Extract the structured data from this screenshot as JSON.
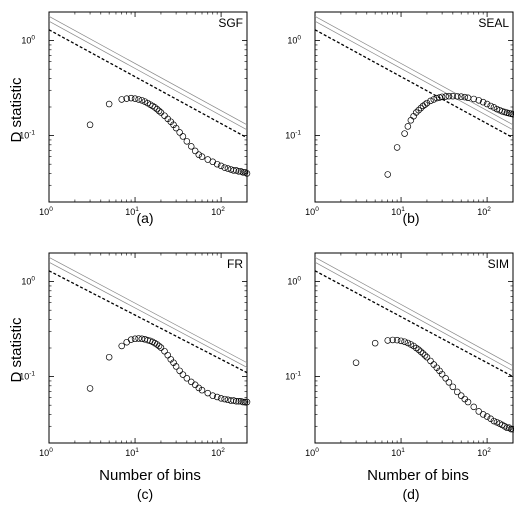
{
  "ylabel": "D statistic",
  "xlabel": "Number of bins",
  "chart_data": [
    {
      "type": "scatter",
      "panel": "(a)",
      "title": "SGF",
      "xscale": "log",
      "yscale": "log",
      "xlim": [
        1,
        200
      ],
      "ylim": [
        0.02,
        2
      ],
      "xticks": [
        {
          "v": 1,
          "base": "10",
          "exp": "0"
        },
        {
          "v": 10,
          "base": "10",
          "exp": "1"
        },
        {
          "v": 100,
          "base": "10",
          "exp": "2"
        }
      ],
      "yticks": [
        {
          "v": 0.1,
          "base": "10",
          "exp": "-1"
        },
        {
          "v": 1,
          "base": "10",
          "exp": "0"
        }
      ],
      "lines": [
        {
          "name": "upper-gray",
          "style": "solid",
          "points": [
            [
              1,
              1.8
            ],
            [
              200,
              0.13
            ]
          ]
        },
        {
          "name": "middle-gray",
          "style": "solid",
          "points": [
            [
              1,
              1.6
            ],
            [
              200,
              0.115
            ]
          ]
        },
        {
          "name": "dashed",
          "style": "dashed",
          "points": [
            [
              1,
              1.3
            ],
            [
              200,
              0.095
            ]
          ]
        }
      ],
      "x": [
        3,
        5,
        7,
        8,
        9,
        10,
        11,
        12,
        13,
        14,
        15,
        16,
        17,
        18,
        19,
        20,
        22,
        24,
        26,
        28,
        30,
        33,
        36,
        40,
        45,
        50,
        55,
        60,
        70,
        80,
        90,
        100,
        110,
        120,
        130,
        140,
        150,
        160,
        170,
        180,
        190,
        200
      ],
      "y": [
        0.13,
        0.215,
        0.24,
        0.245,
        0.248,
        0.245,
        0.24,
        0.235,
        0.228,
        0.22,
        0.212,
        0.205,
        0.198,
        0.19,
        0.182,
        0.175,
        0.162,
        0.15,
        0.14,
        0.13,
        0.12,
        0.108,
        0.098,
        0.087,
        0.077,
        0.069,
        0.063,
        0.06,
        0.056,
        0.053,
        0.05,
        0.048,
        0.046,
        0.045,
        0.044,
        0.043,
        0.043,
        0.042,
        0.042,
        0.041,
        0.041,
        0.04
      ]
    },
    {
      "type": "scatter",
      "panel": "(b)",
      "title": "SEAL",
      "xscale": "log",
      "yscale": "log",
      "xlim": [
        1,
        200
      ],
      "ylim": [
        0.02,
        2
      ],
      "xticks": [
        {
          "v": 1,
          "base": "10",
          "exp": "0"
        },
        {
          "v": 10,
          "base": "10",
          "exp": "1"
        },
        {
          "v": 100,
          "base": "10",
          "exp": "2"
        }
      ],
      "yticks": [
        {
          "v": 0.1,
          "base": "10",
          "exp": "-1"
        },
        {
          "v": 1,
          "base": "10",
          "exp": "0"
        }
      ],
      "lines": [
        {
          "name": "upper-gray",
          "style": "solid",
          "points": [
            [
              1,
              1.8
            ],
            [
              200,
              0.13
            ]
          ]
        },
        {
          "name": "middle-gray",
          "style": "solid",
          "points": [
            [
              1,
              1.6
            ],
            [
              200,
              0.115
            ]
          ]
        },
        {
          "name": "dashed",
          "style": "dashed",
          "points": [
            [
              1,
              1.3
            ],
            [
              200,
              0.095
            ]
          ]
        }
      ],
      "x": [
        7,
        9,
        11,
        12,
        13,
        14,
        15,
        16,
        17,
        18,
        19,
        20,
        22,
        24,
        26,
        28,
        30,
        33,
        36,
        40,
        45,
        50,
        55,
        60,
        70,
        80,
        90,
        100,
        110,
        120,
        130,
        140,
        150,
        160,
        170,
        180,
        190,
        200
      ],
      "y": [
        0.039,
        0.075,
        0.105,
        0.125,
        0.145,
        0.16,
        0.175,
        0.185,
        0.195,
        0.205,
        0.212,
        0.22,
        0.232,
        0.24,
        0.248,
        0.252,
        0.256,
        0.258,
        0.26,
        0.26,
        0.259,
        0.257,
        0.254,
        0.25,
        0.243,
        0.235,
        0.225,
        0.215,
        0.205,
        0.198,
        0.19,
        0.185,
        0.18,
        0.177,
        0.174,
        0.172,
        0.17,
        0.168
      ]
    },
    {
      "type": "scatter",
      "panel": "(c)",
      "title": "FR",
      "xscale": "log",
      "yscale": "log",
      "xlim": [
        1,
        200
      ],
      "ylim": [
        0.02,
        2
      ],
      "xticks": [
        {
          "v": 1,
          "base": "10",
          "exp": "0"
        },
        {
          "v": 10,
          "base": "10",
          "exp": "1"
        },
        {
          "v": 100,
          "base": "10",
          "exp": "2"
        }
      ],
      "yticks": [
        {
          "v": 0.1,
          "base": "10",
          "exp": "-1"
        },
        {
          "v": 1,
          "base": "10",
          "exp": "0"
        }
      ],
      "lines": [
        {
          "name": "upper-gray",
          "style": "solid",
          "points": [
            [
              1,
              1.8
            ],
            [
              200,
              0.14
            ]
          ]
        },
        {
          "name": "middle-gray",
          "style": "solid",
          "points": [
            [
              1,
              1.6
            ],
            [
              200,
              0.125
            ]
          ]
        },
        {
          "name": "dashed",
          "style": "dashed",
          "points": [
            [
              1,
              1.3
            ],
            [
              200,
              0.11
            ]
          ]
        }
      ],
      "x": [
        3,
        5,
        7,
        8,
        9,
        10,
        11,
        12,
        13,
        14,
        15,
        16,
        17,
        18,
        19,
        20,
        22,
        24,
        26,
        28,
        30,
        33,
        36,
        40,
        45,
        50,
        55,
        60,
        70,
        80,
        90,
        100,
        110,
        120,
        130,
        140,
        150,
        160,
        170,
        180,
        190,
        200
      ],
      "y": [
        0.075,
        0.16,
        0.21,
        0.23,
        0.245,
        0.25,
        0.252,
        0.25,
        0.247,
        0.242,
        0.238,
        0.232,
        0.225,
        0.218,
        0.21,
        0.202,
        0.185,
        0.168,
        0.152,
        0.14,
        0.128,
        0.115,
        0.105,
        0.096,
        0.088,
        0.082,
        0.076,
        0.072,
        0.067,
        0.063,
        0.061,
        0.059,
        0.058,
        0.057,
        0.056,
        0.056,
        0.055,
        0.055,
        0.055,
        0.054,
        0.054,
        0.054
      ]
    },
    {
      "type": "scatter",
      "panel": "(d)",
      "title": "SIM",
      "xscale": "log",
      "yscale": "log",
      "xlim": [
        1,
        200
      ],
      "ylim": [
        0.02,
        2
      ],
      "xticks": [
        {
          "v": 1,
          "base": "10",
          "exp": "0"
        },
        {
          "v": 10,
          "base": "10",
          "exp": "1"
        },
        {
          "v": 100,
          "base": "10",
          "exp": "2"
        }
      ],
      "yticks": [
        {
          "v": 0.1,
          "base": "10",
          "exp": "-1"
        },
        {
          "v": 1,
          "base": "10",
          "exp": "0"
        }
      ],
      "lines": [
        {
          "name": "upper-gray",
          "style": "solid",
          "points": [
            [
              1,
              1.8
            ],
            [
              200,
              0.13
            ]
          ]
        },
        {
          "name": "middle-gray",
          "style": "solid",
          "points": [
            [
              1,
              1.6
            ],
            [
              200,
              0.115
            ]
          ]
        },
        {
          "name": "dashed",
          "style": "dashed",
          "points": [
            [
              1,
              1.3
            ],
            [
              200,
              0.1
            ]
          ]
        }
      ],
      "x": [
        3,
        5,
        7,
        8,
        9,
        10,
        11,
        12,
        13,
        14,
        15,
        16,
        17,
        18,
        19,
        20,
        22,
        24,
        26,
        28,
        30,
        33,
        36,
        40,
        45,
        50,
        55,
        60,
        70,
        80,
        90,
        100,
        110,
        120,
        130,
        140,
        150,
        160,
        170,
        180,
        190,
        200
      ],
      "y": [
        0.14,
        0.225,
        0.24,
        0.243,
        0.242,
        0.238,
        0.233,
        0.226,
        0.218,
        0.21,
        0.2,
        0.192,
        0.183,
        0.175,
        0.167,
        0.16,
        0.146,
        0.134,
        0.124,
        0.115,
        0.106,
        0.096,
        0.087,
        0.078,
        0.069,
        0.063,
        0.058,
        0.054,
        0.048,
        0.043,
        0.04,
        0.038,
        0.036,
        0.034,
        0.033,
        0.032,
        0.031,
        0.03,
        0.029,
        0.029,
        0.028,
        0.028
      ]
    }
  ]
}
